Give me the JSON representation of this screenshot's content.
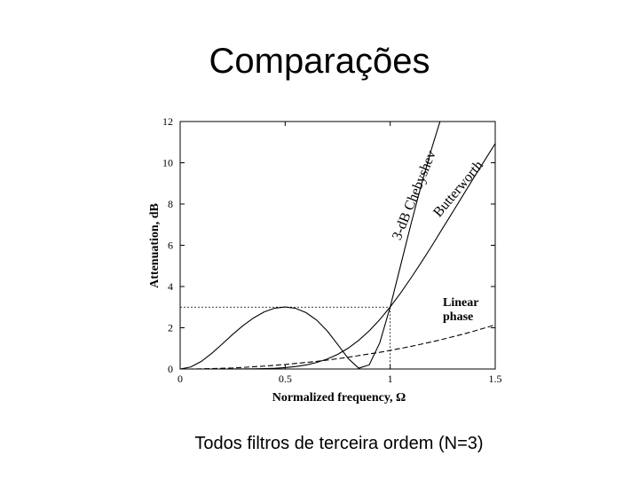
{
  "title": "Comparações",
  "caption": "Todos filtros de terceira ordem (N=3)",
  "chart_data": {
    "type": "line",
    "xlabel": "Normalized frequency, Ω",
    "ylabel": "Attenuation, dB",
    "x": [
      0,
      0.05,
      0.1,
      0.15,
      0.2,
      0.25,
      0.3,
      0.35,
      0.4,
      0.45,
      0.5,
      0.55,
      0.6,
      0.65,
      0.7,
      0.75,
      0.8,
      0.85,
      0.9,
      0.95,
      1,
      1.05,
      1.1,
      1.15,
      1.2,
      1.25,
      1.3,
      1.35,
      1.4,
      1.45,
      1.5
    ],
    "series": [
      {
        "name": "3-dB Chebyshev",
        "color": "#000000",
        "values": [
          0,
          0.096,
          0.365,
          0.757,
          1.21,
          1.68,
          2.11,
          2.48,
          2.77,
          2.95,
          3.01,
          2.94,
          2.73,
          2.37,
          1.85,
          1.19,
          0.51,
          0.04,
          0.2,
          1.26,
          3.01,
          5.04,
          7.07,
          9.0,
          10.78,
          12.43,
          null,
          null,
          null,
          null,
          null
        ]
      },
      {
        "name": "Butterworth",
        "color": "#000000",
        "values": [
          0,
          0,
          0,
          0,
          0,
          0.001,
          0.003,
          0.008,
          0.018,
          0.036,
          0.067,
          0.119,
          0.198,
          0.316,
          0.483,
          0.711,
          1.01,
          1.39,
          1.85,
          2.39,
          3.01,
          3.69,
          4.43,
          5.2,
          6.0,
          6.83,
          7.65,
          8.48,
          9.31,
          10.12,
          10.93
        ]
      },
      {
        "name": "Linear phase",
        "color": "#000000",
        "dashed": true,
        "values": [
          0,
          0,
          0.009,
          0.02,
          0.035,
          0.05,
          0.078,
          0.11,
          0.14,
          0.18,
          0.22,
          0.27,
          0.32,
          0.37,
          0.43,
          0.5,
          0.57,
          0.65,
          0.73,
          0.81,
          0.9,
          1.0,
          1.1,
          1.21,
          1.32,
          1.44,
          1.57,
          1.7,
          1.84,
          1.99,
          2.14
        ]
      }
    ],
    "reference": {
      "x": 1,
      "y": 3
    },
    "xlim": [
      0,
      1.5
    ],
    "xticks": [
      0,
      0.5,
      1,
      1.5
    ],
    "ylim": [
      0,
      12
    ],
    "yticks": [
      0,
      2,
      4,
      6,
      8,
      10,
      12
    ]
  }
}
